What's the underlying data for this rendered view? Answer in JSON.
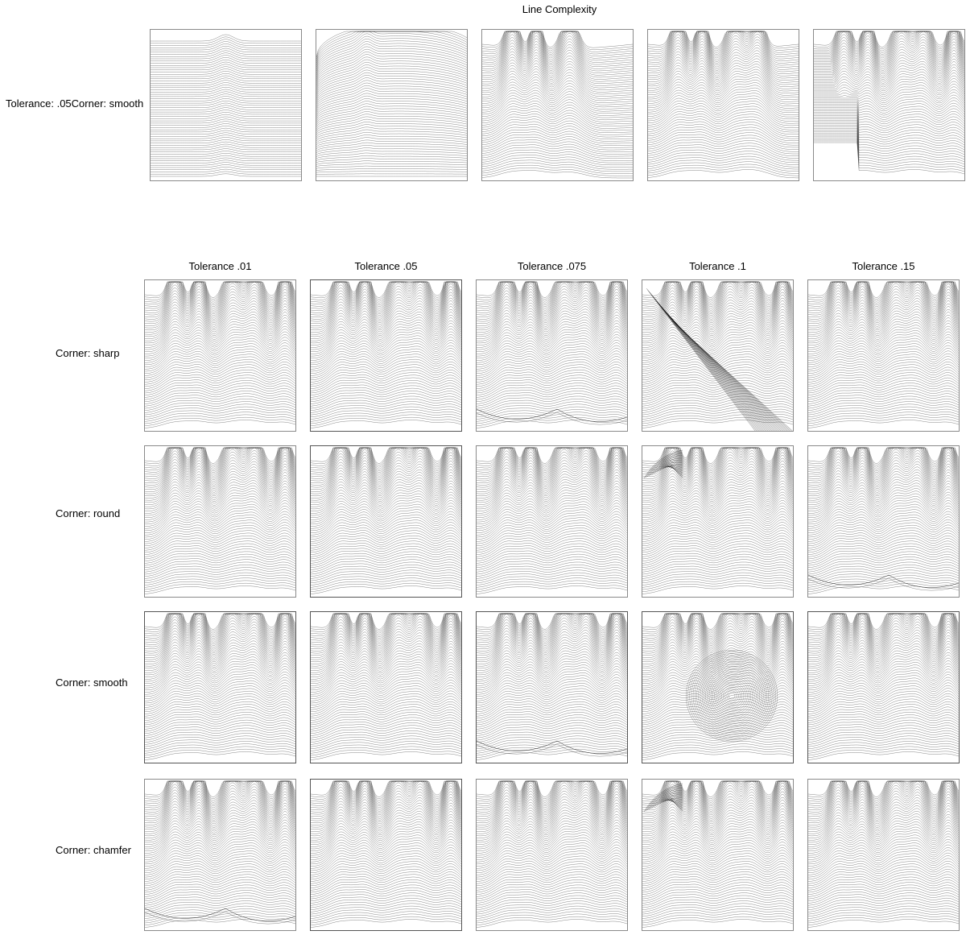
{
  "header": {
    "title": "Line Complexity"
  },
  "top_row": {
    "label": "Tolerance: .05Corner: smooth",
    "panels": [
      {
        "name": "complexity-1",
        "peaks": 1,
        "artifact": "none"
      },
      {
        "name": "complexity-2",
        "peaks": 2,
        "artifact": "none"
      },
      {
        "name": "complexity-3",
        "peaks": 3,
        "artifact": "none"
      },
      {
        "name": "complexity-4",
        "peaks": 4,
        "artifact": "none"
      },
      {
        "name": "complexity-5",
        "peaks": 5,
        "artifact": "none"
      }
    ]
  },
  "grid": {
    "columns": [
      "Tolerance .01",
      "Tolerance .05",
      "Tolerance .075",
      "Tolerance .1",
      "Tolerance .15"
    ],
    "rows": [
      {
        "label": "Corner: sharp",
        "artifacts": [
          "none",
          "none",
          "arc",
          "diagonal",
          "none"
        ]
      },
      {
        "label": "Corner: round",
        "artifacts": [
          "none",
          "none",
          "none",
          "corner",
          "arc"
        ]
      },
      {
        "label": "Corner: smooth",
        "artifacts": [
          "none",
          "none",
          "arc",
          "circle",
          "none"
        ]
      },
      {
        "label": "Corner: chamfer",
        "artifacts": [
          "arc",
          "none",
          "none",
          "corner",
          "none"
        ]
      }
    ]
  }
}
